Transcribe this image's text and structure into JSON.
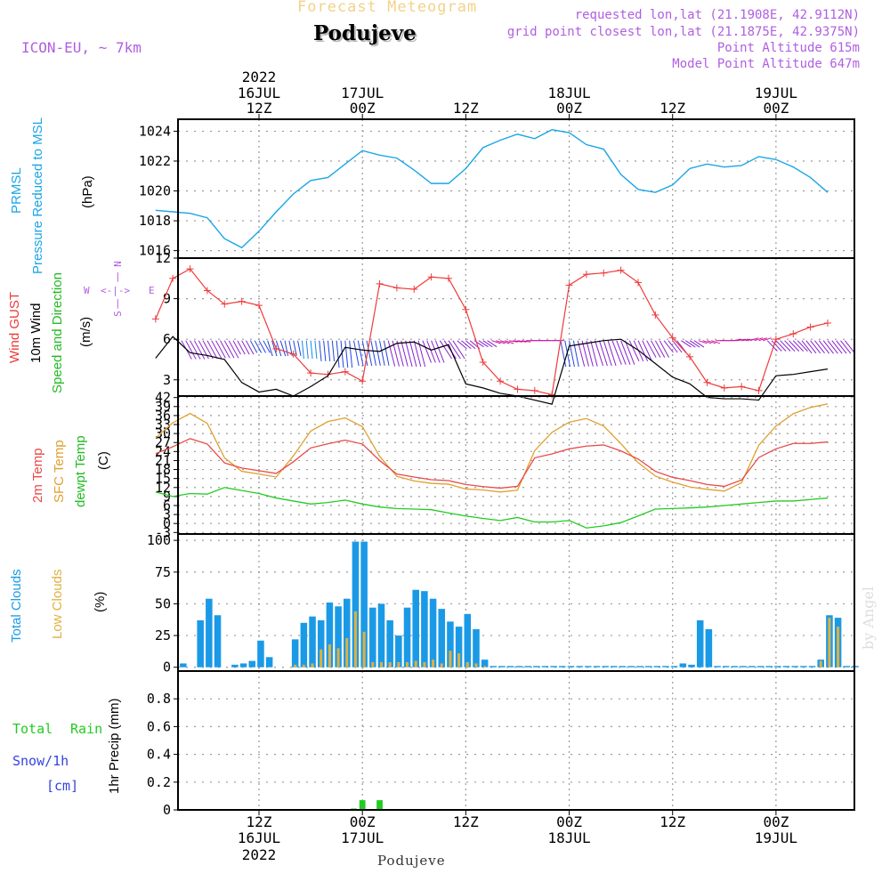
{
  "header": {
    "super_title": "Forecast Meteogram",
    "title": "Podujeve",
    "model": "ICON-EU, ~ 7km",
    "requested": "requested lon,lat (21.1908E, 42.9112N)",
    "gridpoint": "grid point closest lon,lat (21.1875E, 42.9375N)",
    "point_alt": "Point Altitude 615m",
    "model_alt": "Model Point Altitude 647m",
    "watermark": "by Angel",
    "footer": "Podujeve"
  },
  "time_axis": {
    "top": [
      {
        "h": 12,
        "l1": "2022",
        "l2": "16JUL",
        "l3": "12Z"
      },
      {
        "h": 24,
        "l1": "",
        "l2": "17JUL",
        "l3": "00Z"
      },
      {
        "h": 36,
        "l1": "",
        "l2": "",
        "l3": "12Z"
      },
      {
        "h": 48,
        "l1": "",
        "l2": "18JUL",
        "l3": "00Z"
      },
      {
        "h": 60,
        "l1": "",
        "l2": "",
        "l3": "12Z"
      },
      {
        "h": 72,
        "l1": "",
        "l2": "19JUL",
        "l3": "00Z"
      }
    ],
    "bottom": [
      {
        "h": 12,
        "l1": "12Z",
        "l2": "16JUL",
        "l3": "2022"
      },
      {
        "h": 24,
        "l1": "00Z",
        "l2": "17JUL",
        "l3": ""
      },
      {
        "h": 36,
        "l1": "12Z",
        "l2": "",
        "l3": ""
      },
      {
        "h": 48,
        "l1": "00Z",
        "l2": "18JUL",
        "l3": ""
      },
      {
        "h": 60,
        "l1": "12Z",
        "l2": "",
        "l3": ""
      },
      {
        "h": 72,
        "l1": "00Z",
        "l2": "19JUL",
        "l3": ""
      }
    ]
  },
  "panel_labels": {
    "p1": {
      "a": "PRMSL",
      "b": "Pressure Reduced to MSL",
      "unit": "(hPa)"
    },
    "p2": {
      "a": "Wind GUST",
      "b": "10m Wind",
      "c": "Speed and Direction",
      "unit": "(m/s)",
      "n": "N",
      "s": "S",
      "w": "W",
      "e": "E",
      "arrow_v": "|",
      "arrow_h": "<-|->"
    },
    "p3": {
      "a": "2m Temp",
      "b": "SFC Temp",
      "c": "dewpt Temp",
      "unit": "(C)"
    },
    "p4": {
      "a": "Total Clouds",
      "b": "Low Clouds",
      "unit": "(%)"
    },
    "p5": {
      "a": "Total",
      "a2": "Rain",
      "b": "Snow/1h",
      "c": "[cm]",
      "unit": "1hr Precip (mm)"
    }
  },
  "colors": {
    "pressure": "#1aa6e6",
    "gust": "#ee3b3b",
    "wind": "#000000",
    "t2m": "#e84a4a",
    "sfc": "#e0a030",
    "dew": "#22cc22",
    "total_clouds": "#1a9ae6",
    "low_clouds": "#e0b040",
    "rain": "#22cc22",
    "snow": "#3344dd",
    "frame": "#000000",
    "grid": "#999999"
  },
  "chart_data": [
    {
      "type": "line",
      "name": "pressure",
      "ylim": [
        1015.5,
        1024.8
      ],
      "yticks": [
        1016,
        1018,
        1020,
        1022,
        1024
      ],
      "x": [
        0,
        2,
        4,
        6,
        8,
        10,
        12,
        14,
        16,
        18,
        20,
        22,
        24,
        26,
        28,
        30,
        32,
        34,
        36,
        38,
        40,
        42,
        44,
        46,
        48,
        50,
        52,
        54,
        56,
        58,
        60,
        62,
        64,
        66,
        68,
        70,
        72,
        74,
        76,
        78
      ],
      "values": [
        1018.7,
        1018.6,
        1018.5,
        1018.2,
        1016.8,
        1016.2,
        1017.3,
        1018.6,
        1019.8,
        1020.7,
        1020.9,
        1021.8,
        1022.7,
        1022.4,
        1022.2,
        1021.4,
        1020.5,
        1020.5,
        1021.5,
        1022.9,
        1023.4,
        1023.8,
        1023.5,
        1024.1,
        1023.9,
        1023.1,
        1022.8,
        1021.1,
        1020.1,
        1019.9,
        1020.4,
        1021.5,
        1021.8,
        1021.6,
        1021.7,
        1022.3,
        1022.1,
        1021.6,
        1020.9,
        1019.9
      ]
    },
    {
      "type": "line",
      "name": "wind",
      "ylim": [
        1.8,
        12
      ],
      "yticks": [
        3,
        6,
        9,
        12
      ],
      "x": [
        0,
        2,
        4,
        6,
        8,
        10,
        12,
        14,
        16,
        18,
        20,
        22,
        24,
        26,
        28,
        30,
        32,
        34,
        36,
        38,
        40,
        42,
        44,
        46,
        48,
        50,
        52,
        54,
        56,
        58,
        60,
        62,
        64,
        66,
        68,
        70,
        72,
        74,
        76,
        78
      ],
      "gust": [
        7.5,
        10.5,
        11.2,
        9.6,
        8.6,
        8.8,
        8.5,
        5.3,
        4.9,
        3.5,
        3.4,
        3.6,
        2.9,
        10.1,
        9.8,
        9.7,
        10.6,
        10.5,
        8.2,
        4.3,
        2.9,
        2.3,
        2.2,
        1.9,
        10.0,
        10.8,
        10.9,
        11.1,
        10.2,
        7.8,
        6.1,
        4.7,
        2.8,
        2.4,
        2.5,
        2.2,
        6.0,
        6.4,
        6.9,
        7.2
      ],
      "speed": [
        4.6,
        6.2,
        5.0,
        4.8,
        4.5,
        2.8,
        2.1,
        2.3,
        1.8,
        2.5,
        3.3,
        5.4,
        5.2,
        5.1,
        5.7,
        5.8,
        5.2,
        5.6,
        2.7,
        2.4,
        2.0,
        1.8,
        1.5,
        1.2,
        5.5,
        5.7,
        5.9,
        6.0,
        5.2,
        4.2,
        3.2,
        2.7,
        1.7,
        1.6,
        1.6,
        1.5,
        3.3,
        3.4,
        3.6,
        3.8
      ],
      "barb_dir": [
        225,
        225,
        225,
        225,
        225,
        225,
        225,
        210,
        200,
        190,
        190,
        190,
        200,
        200,
        205,
        205,
        215,
        230,
        245,
        250,
        260,
        265,
        270,
        270,
        200,
        205,
        210,
        215,
        220,
        225,
        235,
        250,
        260,
        270,
        275,
        280,
        240,
        240,
        235,
        235
      ]
    },
    {
      "type": "line",
      "name": "temperature",
      "ylim": [
        -3.5,
        42.5
      ],
      "yticks": [
        -3,
        0,
        3,
        6,
        9,
        12,
        15,
        18,
        21,
        24,
        27,
        30,
        33,
        36,
        39,
        42
      ],
      "x": [
        0,
        2,
        4,
        6,
        8,
        10,
        12,
        14,
        16,
        18,
        20,
        22,
        24,
        26,
        28,
        30,
        32,
        34,
        36,
        38,
        40,
        42,
        44,
        46,
        48,
        50,
        52,
        54,
        56,
        58,
        60,
        62,
        64,
        66,
        68,
        70,
        72,
        74,
        76,
        78
      ],
      "t2m": [
        23.3,
        25.6,
        28.3,
        26.5,
        20.2,
        18.5,
        17.6,
        16.7,
        20.6,
        25.2,
        26.6,
        27.8,
        26.5,
        21.0,
        16.5,
        15.5,
        14.6,
        14.3,
        13.0,
        12.3,
        11.8,
        12.4,
        21.9,
        23.2,
        24.9,
        25.8,
        26.2,
        24.2,
        21.5,
        17.4,
        15.4,
        14.3,
        13.0,
        12.4,
        14.5,
        22.0,
        24.9,
        26.7,
        26.7,
        27.2
      ],
      "sfc": [
        28.5,
        33.6,
        36.7,
        33.4,
        21.9,
        17.4,
        16.5,
        15.5,
        22.6,
        30.8,
        34.0,
        35.2,
        32.3,
        22.4,
        15.7,
        14.2,
        13.4,
        13.1,
        11.5,
        11.2,
        10.5,
        11.1,
        24.3,
        30.4,
        33.8,
        35.0,
        32.5,
        26.6,
        20.3,
        15.8,
        13.8,
        12.2,
        11.4,
        10.8,
        13.6,
        26.1,
        32.5,
        36.6,
        38.7,
        39.9
      ],
      "dew": [
        10.5,
        9.0,
        10.0,
        9.8,
        12.0,
        11.0,
        10.0,
        8.5,
        7.5,
        6.5,
        7.0,
        7.8,
        6.5,
        5.5,
        5.0,
        4.8,
        4.6,
        3.5,
        2.5,
        1.7,
        1.0,
        2.0,
        0.5,
        0.5,
        1.0,
        -1.5,
        -0.8,
        0.3,
        2.5,
        4.8,
        5.0,
        5.2,
        5.5,
        6.0,
        6.5,
        7.0,
        7.5,
        7.5,
        8.0,
        8.5
      ]
    },
    {
      "type": "bar",
      "name": "clouds",
      "ylim": [
        -3,
        105
      ],
      "yticks": [
        0,
        25,
        50,
        75,
        100
      ],
      "x": [
        0,
        1,
        2,
        3,
        4,
        5,
        6,
        7,
        8,
        9,
        10,
        11,
        12,
        13,
        14,
        15,
        16,
        17,
        18,
        19,
        20,
        21,
        22,
        23,
        24,
        25,
        26,
        27,
        28,
        29,
        30,
        31,
        32,
        33,
        34,
        35,
        36,
        37,
        38,
        39,
        40,
        41,
        42,
        43,
        44,
        45,
        46,
        47,
        48,
        49,
        50,
        51,
        52,
        53,
        54,
        55,
        56,
        57,
        58,
        59,
        60,
        61,
        62,
        63,
        64,
        65,
        66,
        67,
        68,
        69,
        70,
        71,
        72,
        73,
        74,
        75,
        76,
        77,
        78,
        79
      ],
      "total": [
        0,
        3,
        0,
        37,
        54,
        41,
        0,
        2,
        3,
        5,
        21,
        8,
        0,
        0,
        22,
        35,
        40,
        37,
        51,
        48,
        54,
        99,
        99,
        47,
        50,
        37,
        25,
        47,
        61,
        60,
        54,
        46,
        36,
        32,
        42,
        30,
        6,
        1,
        1,
        1,
        1,
        1,
        1,
        1,
        1,
        1,
        1,
        1,
        1,
        1,
        1,
        1,
        1,
        1,
        1,
        1,
        1,
        1,
        1,
        3,
        2,
        37,
        30,
        1,
        1,
        1,
        1,
        1,
        1,
        1,
        1,
        1,
        1,
        1,
        1,
        6,
        41,
        39,
        1,
        1
      ],
      "low": [
        0,
        0,
        0,
        0,
        0,
        0,
        0,
        0,
        0,
        0,
        0,
        0,
        0,
        0,
        2,
        2,
        3,
        14,
        18,
        15,
        23,
        44,
        28,
        4,
        4,
        4,
        4,
        4,
        5,
        4,
        6,
        3,
        13,
        11,
        4,
        3,
        1,
        0,
        0,
        0,
        0,
        0,
        0,
        0,
        0,
        0,
        0,
        0,
        0,
        0,
        0,
        0,
        0,
        0,
        0,
        0,
        0,
        0,
        0,
        0,
        0,
        0,
        0,
        0,
        0,
        0,
        0,
        0,
        0,
        0,
        0,
        0,
        0,
        0,
        0,
        5,
        39,
        32,
        0,
        0
      ]
    },
    {
      "type": "bar",
      "name": "precip",
      "ylim": [
        0,
        1.0
      ],
      "yticks": [
        0,
        0.2,
        0.4,
        0.6,
        0.8
      ],
      "x": [
        23,
        24,
        26
      ],
      "rain": [
        0.01,
        0.07,
        0.07
      ],
      "snow": [
        0,
        0,
        0
      ]
    }
  ]
}
